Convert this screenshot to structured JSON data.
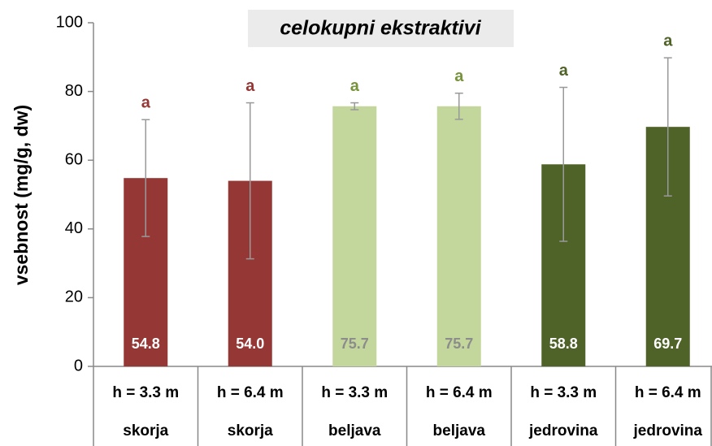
{
  "chart_data": {
    "type": "bar",
    "title": "celokupni ekstraktivi",
    "y_label": "vsebnost (mg/g, dw)",
    "categories": [
      "h = 3.3 m",
      "h = 6.4 m",
      "h = 3.3 m",
      "h = 6.4 m",
      "h = 3.3 m",
      "h = 6.4 m"
    ],
    "category_groups": [
      "skorja",
      "skorja",
      "beljava",
      "beljava",
      "jedrovina",
      "jedrovina"
    ],
    "values": [
      54.8,
      54.0,
      75.7,
      75.7,
      58.8,
      69.7
    ],
    "value_labels": [
      "54.8",
      "54.0",
      "75.7",
      "75.7",
      "58.8",
      "69.7"
    ],
    "errors": [
      17,
      22.7,
      1,
      3.8,
      22.4,
      20.1
    ],
    "annotations": [
      "a",
      "a",
      "a",
      "a",
      "a",
      "a"
    ],
    "colors": [
      "#953735",
      "#953735",
      "#c3d69b",
      "#c3d69b",
      "#4f6228",
      "#4f6228"
    ],
    "annotation_colors": [
      "#953735",
      "#953735",
      "#77933c",
      "#77933c",
      "#4f6228",
      "#4f6228"
    ],
    "value_label_colors": [
      "#ffffff",
      "#ffffff",
      "#8c8c8c",
      "#8c8c8c",
      "#ffffff",
      "#ffffff"
    ],
    "ylim": [
      0,
      100
    ],
    "yticks": [
      0,
      20,
      40,
      60,
      80,
      100
    ],
    "grid": false
  }
}
